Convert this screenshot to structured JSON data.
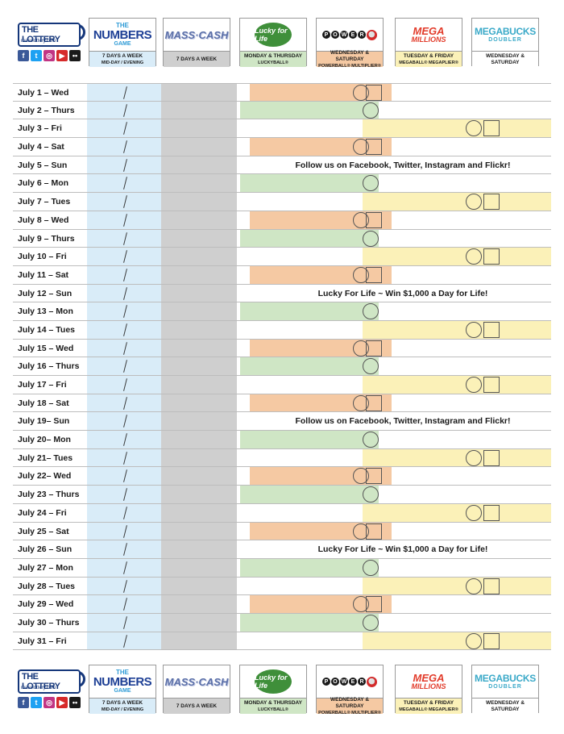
{
  "brand": {
    "name": "THE LOTTERY",
    "url": "masslottery.com",
    "social": [
      {
        "name": "facebook-icon",
        "glyph": "f",
        "color": "#3b5998"
      },
      {
        "name": "twitter-icon",
        "glyph": "t",
        "color": "#1da1f2"
      },
      {
        "name": "instagram-icon",
        "glyph": "◎",
        "color": "#c13584"
      },
      {
        "name": "youtube-icon",
        "glyph": "▶",
        "color": "#d62a2a"
      },
      {
        "name": "flickr-icon",
        "glyph": "••",
        "color": "#1a1a1a"
      }
    ]
  },
  "games": [
    {
      "id": "numbers",
      "logo_the": "THE",
      "logo_big": "NUMBERS",
      "logo_game": "GAME",
      "schedule": "7 DAYS A WEEK",
      "sub": "MID-DAY / EVENING",
      "color": "#d9ecf8"
    },
    {
      "id": "masscash",
      "logo": "MASS·CASH",
      "schedule": "7 DAYS A WEEK",
      "sub": "",
      "color": "#cfcfcf"
    },
    {
      "id": "lucky",
      "logo": "Lucky for Life",
      "schedule": "MONDAY & THURSDAY",
      "sub": "LUCKYBALL®",
      "color": "#cfe6c5"
    },
    {
      "id": "powerball",
      "logo_letters": [
        "P",
        "O",
        "W",
        "E",
        "R"
      ],
      "logo_ball": "⚪",
      "schedule": "WEDNESDAY & SATURDAY",
      "sub": "POWERBALL® MULTIPLIER®",
      "color": "#f5c9a3"
    },
    {
      "id": "mega",
      "logo_1": "MEGA",
      "logo_2": "MILLIONS",
      "schedule": "TUESDAY & FRIDAY",
      "sub": "MEGABALL® MEGAPLIER®",
      "color": "#fbf1b8"
    },
    {
      "id": "megabucks",
      "logo_1": "MEGABUCKS",
      "logo_2": "DOUBLER",
      "schedule": "WEDNESDAY & SATURDAY",
      "sub": "",
      "color": "#ffffff"
    }
  ],
  "days": [
    {
      "date": "July 1 – Wed",
      "draw": "power"
    },
    {
      "date": "July 2 – Thurs",
      "draw": "lucky"
    },
    {
      "date": "July 3 – Fri",
      "draw": "mega"
    },
    {
      "date": "July 4 – Sat",
      "draw": "power"
    },
    {
      "date": "July 5 – Sun",
      "draw": "promo",
      "promo": "Follow us on Facebook, Twitter, Instagram and Flickr!"
    },
    {
      "date": "July 6 – Mon",
      "draw": "lucky"
    },
    {
      "date": "July 7 – Tues",
      "draw": "mega"
    },
    {
      "date": "July 8 – Wed",
      "draw": "power"
    },
    {
      "date": "July 9 – Thurs",
      "draw": "lucky"
    },
    {
      "date": "July 10 – Fri",
      "draw": "mega"
    },
    {
      "date": "July 11 – Sat",
      "draw": "power"
    },
    {
      "date": "July 12 – Sun",
      "draw": "promo",
      "promo": "Lucky For Life ~ Win $1,000 a Day for Life!"
    },
    {
      "date": "July 13 – Mon",
      "draw": "lucky"
    },
    {
      "date": "July 14 – Tues",
      "draw": "mega"
    },
    {
      "date": "July 15 – Wed",
      "draw": "power"
    },
    {
      "date": "July 16 – Thurs",
      "draw": "lucky"
    },
    {
      "date": "July 17 – Fri",
      "draw": "mega"
    },
    {
      "date": "July 18 – Sat",
      "draw": "power"
    },
    {
      "date": "July 19– Sun",
      "draw": "promo",
      "promo": "Follow us on Facebook, Twitter, Instagram and Flickr!"
    },
    {
      "date": "July 20– Mon",
      "draw": "lucky"
    },
    {
      "date": "July 21– Tues",
      "draw": "mega"
    },
    {
      "date": "July 22– Wed",
      "draw": "power"
    },
    {
      "date": "July 23 – Thurs",
      "draw": "lucky"
    },
    {
      "date": "July 24 – Fri",
      "draw": "mega"
    },
    {
      "date": "July 25 – Sat",
      "draw": "power"
    },
    {
      "date": "July 26 – Sun",
      "draw": "promo",
      "promo": "Lucky For Life ~ Win $1,000 a Day for Life!"
    },
    {
      "date": "July 27 – Mon",
      "draw": "lucky"
    },
    {
      "date": "July 28 – Tues",
      "draw": "mega"
    },
    {
      "date": "July 29 – Wed",
      "draw": "power"
    },
    {
      "date": "July 30 – Thurs",
      "draw": "lucky"
    },
    {
      "date": "July 31 – Fri",
      "draw": "mega"
    }
  ]
}
